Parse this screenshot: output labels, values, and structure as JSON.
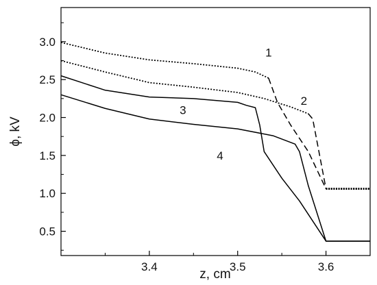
{
  "chart_data": {
    "type": "line",
    "xlabel": "z, cm",
    "ylabel": "ϕ, kV",
    "xlim": [
      3.3,
      3.65
    ],
    "ylim": [
      0.18,
      3.45
    ],
    "xticks": [
      3.4,
      3.5,
      3.6
    ],
    "xtick_labels": [
      "3.4",
      "3.5",
      "3.6"
    ],
    "xminor": [
      3.35,
      3.45,
      3.55
    ],
    "yticks": [
      0.5,
      1.0,
      1.5,
      2.0,
      2.5,
      3.0
    ],
    "ytick_labels": [
      "0.5",
      "1.0",
      "1.5",
      "2.0",
      "2.5",
      "3.0"
    ],
    "yminor": [
      0.25,
      0.75,
      1.25,
      1.75,
      2.25,
      2.75,
      3.25
    ],
    "grid": false,
    "series": [
      {
        "name": "1",
        "style": "dotted-dashed",
        "color": "#000000",
        "label_at": [
          3.535,
          2.86
        ],
        "points": [
          [
            3.3,
            2.99
          ],
          [
            3.35,
            2.85
          ],
          [
            3.4,
            2.76
          ],
          [
            3.45,
            2.71
          ],
          [
            3.5,
            2.65
          ],
          [
            3.52,
            2.6
          ],
          [
            3.535,
            2.52
          ],
          [
            3.545,
            2.2
          ],
          [
            3.56,
            1.9
          ],
          [
            3.58,
            1.55
          ],
          [
            3.6,
            1.06
          ],
          [
            3.65,
            1.06
          ]
        ]
      },
      {
        "name": "2",
        "style": "dotted-dashed",
        "color": "#000000",
        "label_at": [
          3.575,
          2.22
        ],
        "points": [
          [
            3.3,
            2.75
          ],
          [
            3.35,
            2.6
          ],
          [
            3.4,
            2.46
          ],
          [
            3.45,
            2.4
          ],
          [
            3.5,
            2.33
          ],
          [
            3.53,
            2.25
          ],
          [
            3.56,
            2.14
          ],
          [
            3.58,
            2.05
          ],
          [
            3.585,
            1.98
          ],
          [
            3.6,
            1.06
          ],
          [
            3.65,
            1.06
          ]
        ]
      },
      {
        "name": "3",
        "style": "solid",
        "color": "#000000",
        "label_at": [
          3.438,
          2.1
        ],
        "points": [
          [
            3.3,
            2.55
          ],
          [
            3.35,
            2.36
          ],
          [
            3.4,
            2.27
          ],
          [
            3.45,
            2.25
          ],
          [
            3.5,
            2.2
          ],
          [
            3.51,
            2.16
          ],
          [
            3.52,
            2.13
          ],
          [
            3.525,
            1.9
          ],
          [
            3.53,
            1.55
          ],
          [
            3.55,
            1.2
          ],
          [
            3.57,
            0.9
          ],
          [
            3.6,
            0.37
          ],
          [
            3.65,
            0.37
          ]
        ]
      },
      {
        "name": "4",
        "style": "solid",
        "color": "#000000",
        "label_at": [
          3.48,
          1.5
        ],
        "points": [
          [
            3.3,
            2.3
          ],
          [
            3.35,
            2.12
          ],
          [
            3.4,
            1.98
          ],
          [
            3.45,
            1.91
          ],
          [
            3.5,
            1.85
          ],
          [
            3.54,
            1.76
          ],
          [
            3.565,
            1.65
          ],
          [
            3.57,
            1.55
          ],
          [
            3.58,
            1.1
          ],
          [
            3.6,
            0.37
          ],
          [
            3.65,
            0.37
          ]
        ]
      }
    ]
  }
}
